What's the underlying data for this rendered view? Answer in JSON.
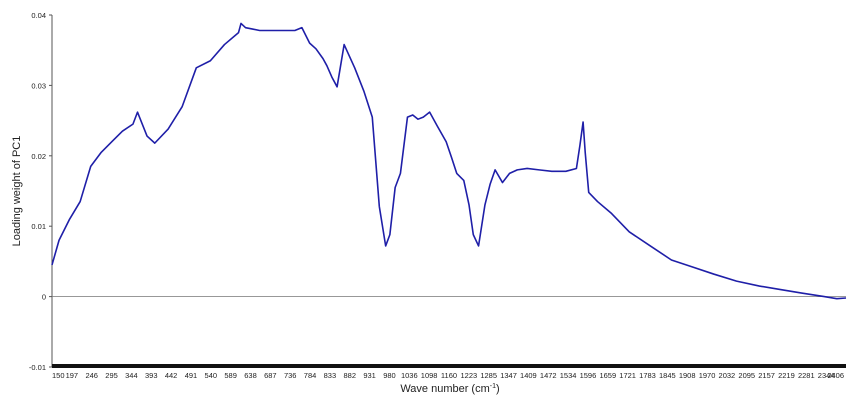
{
  "chart_data": {
    "type": "line",
    "title": "",
    "ylabel": "Loading weight  of PC1",
    "xlabel_main": "Wave number (cm",
    "xlabel_sup": "-1",
    "xlabel_end": ")",
    "ylim": [
      -0.01,
      0.04
    ],
    "xlim": [
      150,
      2406
    ],
    "yticks": [
      "-0.01",
      "0",
      "0.01",
      "0.02",
      "0.03",
      "0.04"
    ],
    "xticks": [
      "150",
      "197",
      "246",
      "295",
      "344",
      "393",
      "442",
      "491",
      "540",
      "589",
      "638",
      "687",
      "736",
      "784",
      "833",
      "882",
      "931",
      "980",
      "1036",
      "1098",
      "1160",
      "1223",
      "1285",
      "1347",
      "1409",
      "1472",
      "1534",
      "1596",
      "1659",
      "1721",
      "1783",
      "1845",
      "1908",
      "1970",
      "2032",
      "2095",
      "2157",
      "2219",
      "2281",
      "2344",
      "2406"
    ],
    "series": [
      {
        "name": "",
        "color": "#1f1fa8",
        "x": [
          150,
          170,
          200,
          230,
          260,
          290,
          320,
          350,
          380,
          393,
          420,
          442,
          480,
          520,
          560,
          600,
          640,
          680,
          687,
          700,
          720,
          740,
          760,
          780,
          800,
          820,
          840,
          860,
          882,
          900,
          920,
          931,
          945,
          960,
          980,
          1010,
          1036,
          1060,
          1080,
          1098,
          1110,
          1125,
          1140,
          1160,
          1175,
          1190,
          1205,
          1223,
          1245,
          1270,
          1285,
          1300,
          1320,
          1335,
          1347,
          1362,
          1380,
          1395,
          1409,
          1430,
          1450,
          1472,
          1500,
          1534,
          1570,
          1610,
          1640,
          1650,
          1659,
          1665,
          1675,
          1700,
          1740,
          1790,
          1850,
          1910,
          1970,
          2030,
          2095,
          2160,
          2220,
          2280,
          2344,
          2380,
          2406
        ],
        "y": [
          0.0045,
          0.008,
          0.011,
          0.0135,
          0.0185,
          0.0205,
          0.022,
          0.0235,
          0.0245,
          0.0262,
          0.0228,
          0.0218,
          0.0238,
          0.027,
          0.0325,
          0.0335,
          0.0358,
          0.0375,
          0.0388,
          0.0382,
          0.038,
          0.0378,
          0.0378,
          0.0378,
          0.0378,
          0.0378,
          0.0378,
          0.0382,
          0.036,
          0.0352,
          0.0338,
          0.0328,
          0.0312,
          0.0298,
          0.0358,
          0.0325,
          0.0292,
          0.0255,
          0.0128,
          0.0072,
          0.0088,
          0.0155,
          0.0175,
          0.0255,
          0.0258,
          0.0252,
          0.0255,
          0.0262,
          0.0242,
          0.022,
          0.0198,
          0.0175,
          0.0165,
          0.013,
          0.0088,
          0.0072,
          0.013,
          0.016,
          0.018,
          0.0162,
          0.0175,
          0.018,
          0.0182,
          0.018,
          0.0178,
          0.0178,
          0.0182,
          0.0215,
          0.0248,
          0.0205,
          0.0148,
          0.0135,
          0.0118,
          0.0092,
          0.0072,
          0.0052,
          0.0042,
          0.0032,
          0.0022,
          0.0015,
          0.001,
          0.0005,
          0.0,
          -0.0003,
          -0.0002
        ]
      }
    ],
    "grid": false,
    "legend": "none"
  }
}
